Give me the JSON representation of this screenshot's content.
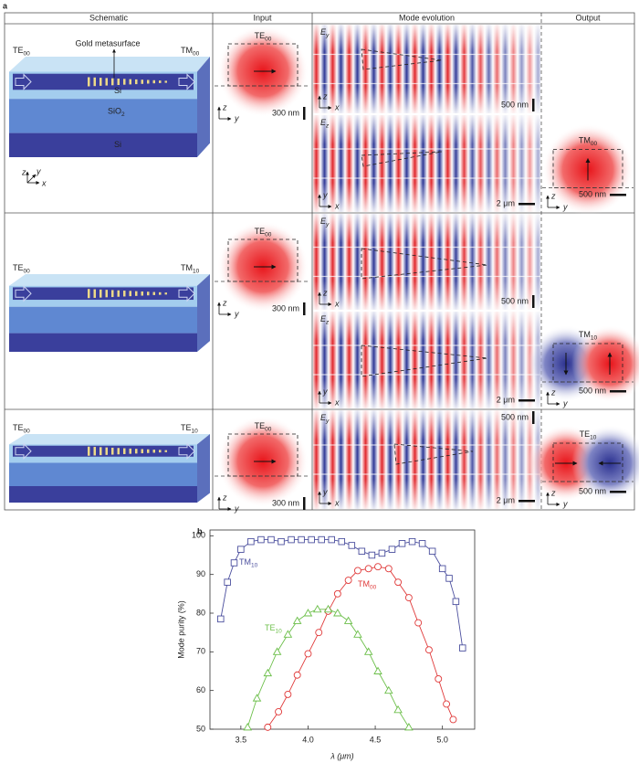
{
  "panel_a": {
    "label": "a",
    "headers": [
      "Schematic",
      "Input",
      "Mode evolution",
      "Output"
    ],
    "rows": [
      {
        "schematic": {
          "in": {
            "main": "TE",
            "sub": "00"
          },
          "out": {
            "main": "TM",
            "sub": "00"
          },
          "metasurface": "Gold metasurface",
          "layers": [
            "Si",
            {
              "main": "SiO",
              "sub": "2"
            },
            "Si"
          ],
          "axes": [
            "z",
            "y",
            "x"
          ]
        },
        "input": {
          "mode": {
            "main": "TE",
            "sub": "00"
          },
          "axes": [
            "z",
            "y"
          ],
          "scale": "300 nm"
        },
        "evolution": [
          {
            "field": {
              "main": "E",
              "sub": "y"
            },
            "axes": [
              "z",
              "x"
            ],
            "scales": [
              "500 nm"
            ]
          },
          {
            "field": {
              "main": "E",
              "sub": "z"
            },
            "axes": [
              "y",
              "x"
            ],
            "scales": [
              "2 μm"
            ]
          }
        ],
        "output": {
          "mode": {
            "main": "TM",
            "sub": "00"
          },
          "axes": [
            "z",
            "y"
          ],
          "scale": "500 nm"
        }
      },
      {
        "schematic": {
          "in": {
            "main": "TE",
            "sub": "00"
          },
          "out": {
            "main": "TM",
            "sub": "10"
          }
        },
        "input": {
          "mode": {
            "main": "TE",
            "sub": "00"
          },
          "axes": [
            "z",
            "y"
          ],
          "scale": "300 nm"
        },
        "evolution": [
          {
            "field": {
              "main": "E",
              "sub": "y"
            },
            "axes": [
              "z",
              "x"
            ],
            "scales": [
              "500 nm"
            ]
          },
          {
            "field": {
              "main": "E",
              "sub": "z"
            },
            "axes": [
              "y",
              "x"
            ],
            "scales": [
              "2 μm"
            ]
          }
        ],
        "output": {
          "mode": {
            "main": "TM",
            "sub": "10"
          },
          "axes": [
            "z",
            "y"
          ],
          "scale": "500 nm"
        }
      },
      {
        "schematic": {
          "in": {
            "main": "TE",
            "sub": "00"
          },
          "out": {
            "main": "TE",
            "sub": "10"
          }
        },
        "input": {
          "mode": {
            "main": "TE",
            "sub": "00"
          },
          "axes": [
            "z",
            "y"
          ],
          "scale": "300 nm"
        },
        "evolution": [
          {
            "field": {
              "main": "E",
              "sub": "y"
            },
            "axes": [
              "y",
              "x"
            ],
            "scales": [
              "500 nm",
              "2 μm"
            ]
          }
        ],
        "output": {
          "mode": {
            "main": "TE",
            "sub": "10"
          },
          "axes": [
            "z",
            "y"
          ],
          "scale": "500 nm"
        }
      }
    ]
  },
  "chart_data": {
    "type": "line",
    "label": "b",
    "xlabel": "λ (μm)",
    "ylabel": "Mode purity (%)",
    "xlim": [
      3.27,
      5.24
    ],
    "ylim": [
      50,
      101.5
    ],
    "xticks": [
      3.5,
      {
        "value": 4,
        "label": "4.0"
      },
      4.5,
      {
        "value": 5,
        "label": "5.0"
      }
    ],
    "yticks": [
      50,
      60,
      70,
      80,
      90,
      100
    ],
    "series": [
      {
        "label": {
          "main": "TM",
          "sub": "10"
        },
        "color": "#4b4f9e",
        "marker": "square",
        "x": [
          3.35,
          3.4,
          3.45,
          3.5,
          3.575,
          3.65,
          3.725,
          3.8,
          3.875,
          3.95,
          4.025,
          4.1,
          4.175,
          4.25,
          4.325,
          4.4,
          4.475,
          4.55,
          4.625,
          4.7,
          4.775,
          4.85,
          4.925,
          5.0,
          5.05,
          5.1,
          5.15
        ],
        "values": [
          78.5,
          88,
          93,
          96.5,
          98.5,
          99,
          99,
          98.5,
          99,
          99,
          99,
          99,
          99,
          98.5,
          97.5,
          96,
          95,
          95.5,
          96.5,
          98,
          98.5,
          98,
          96,
          91.5,
          89,
          83,
          71
        ]
      },
      {
        "label": {
          "main": "TM",
          "sub": "00"
        },
        "color": "#e03a3a",
        "marker": "circle",
        "x": [
          3.7,
          3.78,
          3.85,
          3.92,
          4.0,
          4.08,
          4.15,
          4.22,
          4.3,
          4.37,
          4.45,
          4.52,
          4.6,
          4.67,
          4.75,
          4.82,
          4.9,
          4.97,
          5.03,
          5.08
        ],
        "values": [
          50.5,
          54.5,
          59,
          64,
          69.5,
          75,
          80.5,
          85,
          88.5,
          91,
          91.5,
          92,
          91.5,
          88,
          84,
          77.5,
          70.5,
          63,
          56.5,
          52.5
        ]
      },
      {
        "label": {
          "main": "TE",
          "sub": "10"
        },
        "color": "#6cbf4a",
        "marker": "triangle",
        "x": [
          3.55,
          3.62,
          3.7,
          3.77,
          3.85,
          3.92,
          4.0,
          4.07,
          4.15,
          4.22,
          4.3,
          4.37,
          4.45,
          4.52,
          4.6,
          4.67,
          4.75
        ],
        "values": [
          50.5,
          58,
          64.5,
          70,
          74.5,
          78,
          80,
          81,
          81,
          80,
          78,
          74.5,
          70,
          65,
          60,
          55,
          50.5
        ]
      }
    ]
  }
}
